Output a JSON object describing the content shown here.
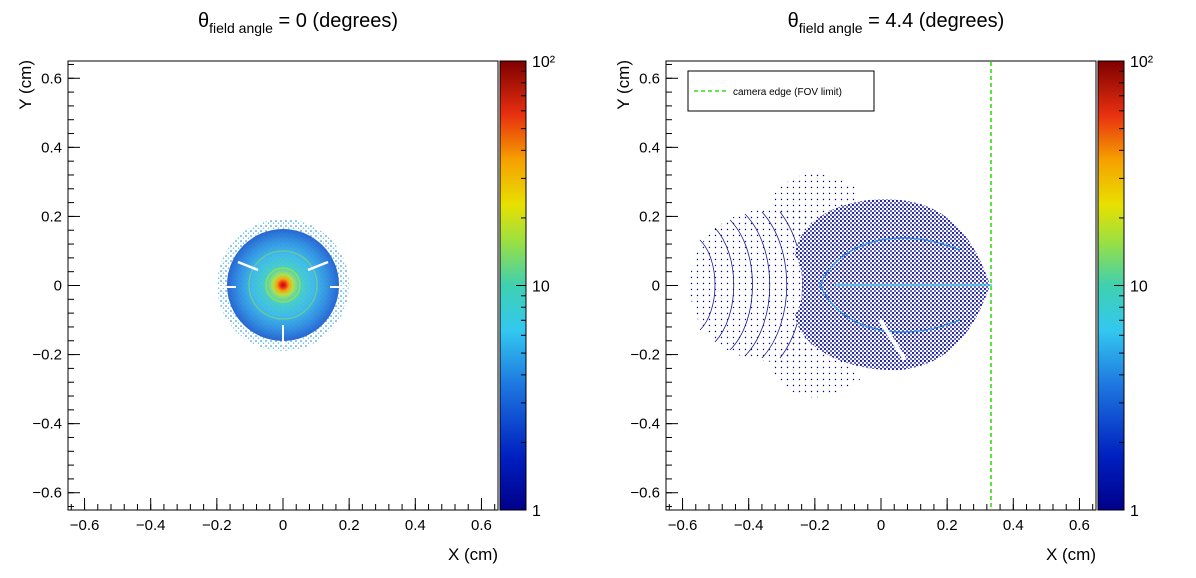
{
  "chart_data": [
    {
      "type": "heatmap",
      "title": {
        "symbol": "θ",
        "subscript": "field angle",
        "rest": " = 0 (degrees)"
      },
      "xlabel": "X (cm)",
      "ylabel": "Y (cm)",
      "xlim": [
        -0.65,
        0.65
      ],
      "ylim": [
        -0.65,
        0.65
      ],
      "xticks": [
        -0.6,
        -0.4,
        -0.2,
        0,
        0.2,
        0.4,
        0.6
      ],
      "yticks": [
        -0.6,
        -0.4,
        -0.2,
        0,
        0.2,
        0.4,
        0.6
      ],
      "xtick_labels": [
        "−0.6",
        "−0.4",
        "−0.2",
        "0",
        "0.2",
        "0.4",
        "0.6"
      ],
      "ytick_labels": [
        "−0.6",
        "−0.4",
        "−0.2",
        "0",
        "0.2",
        "0.4",
        "0.6"
      ],
      "colorbar": {
        "scale": "log",
        "range": [
          1,
          100
        ],
        "labels": [
          "1",
          "10",
          "10²"
        ]
      },
      "spot": {
        "center": [
          0,
          0
        ],
        "radius": 0.19,
        "peak": 100,
        "structure": "radial rings with tangential gaps"
      },
      "grid": false,
      "legend": null
    },
    {
      "type": "heatmap",
      "title": {
        "symbol": "θ",
        "subscript": "field angle",
        "rest": " = 4.4 (degrees)"
      },
      "xlabel": "X (cm)",
      "ylabel": "Y (cm)",
      "xlim": [
        -0.65,
        0.65
      ],
      "ylim": [
        -0.65,
        0.65
      ],
      "xticks": [
        -0.6,
        -0.4,
        -0.2,
        0,
        0.2,
        0.4,
        0.6
      ],
      "yticks": [
        -0.6,
        -0.4,
        -0.2,
        0,
        0.2,
        0.4,
        0.6
      ],
      "xtick_labels": [
        "−0.6",
        "−0.4",
        "−0.2",
        "0",
        "0.2",
        "0.4",
        "0.6"
      ],
      "ytick_labels": [
        "−0.6",
        "−0.4",
        "−0.2",
        "0",
        "0.2",
        "0.4",
        "0.6"
      ],
      "colorbar": {
        "scale": "log",
        "range": [
          1,
          100
        ],
        "labels": [
          "1",
          "10",
          "10²"
        ]
      },
      "spot": {
        "extent_x": [
          -0.6,
          0.34
        ],
        "extent_y": [
          -0.35,
          0.35
        ],
        "dominant_value": 1,
        "structure": "comatic aberrated spot with mesh pattern"
      },
      "reference_line": {
        "label": "camera edge (FOV limit)",
        "x": 0.335,
        "style": "dashed",
        "color": "#33dd11"
      },
      "grid": false,
      "legend": {
        "placement": "top-left",
        "entries": [
          "camera edge (FOV limit)"
        ]
      }
    }
  ],
  "colors": {
    "palette_low": "#00008b",
    "palette_high": "#7f0000",
    "fov_line": "#33dd11"
  }
}
